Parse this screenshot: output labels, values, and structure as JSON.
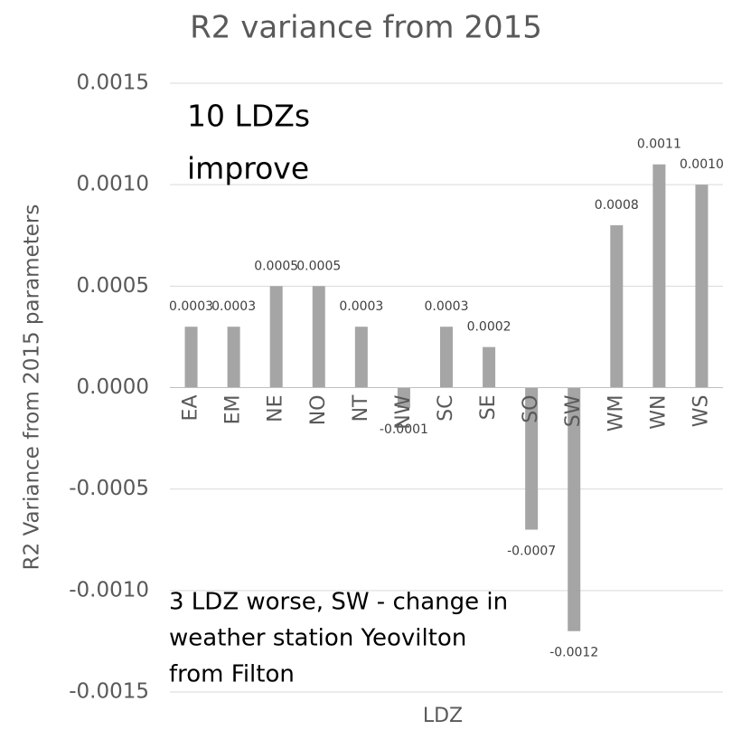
{
  "chart_data": {
    "type": "bar",
    "title": "R2 variance from 2015",
    "x_label": "LDZ",
    "y_label": "R2 Variance from 2015 parameters",
    "categories": [
      "EA",
      "EM",
      "NE",
      "NO",
      "NT",
      "NW",
      "SC",
      "SE",
      "SO",
      "SW",
      "WM",
      "WN",
      "WS"
    ],
    "values": [
      0.0003,
      0.0003,
      0.0005,
      0.0005,
      0.0003,
      -0.0001,
      0.0003,
      0.0002,
      -0.0007,
      -0.0012,
      0.0008,
      0.0011,
      0.001
    ],
    "value_labels": [
      "0.0003",
      "0.0003",
      "0.0005",
      "0.0005",
      "0.0003",
      "-0.0001",
      "0.0003",
      "0.0002",
      "-0.0007",
      "-0.0012",
      "0.0008",
      "0.0011",
      "0.0010"
    ],
    "color": "#a5a5a5",
    "ylim": [
      -0.0015,
      0.0015
    ],
    "yticks": [
      0.0015,
      {
        "value": 0.001,
        "label": "0.0010"
      },
      0.0005,
      {
        "value": 0,
        "label": "0.0000"
      },
      -0.0005,
      {
        "value": -0.001,
        "label": "-0.0010"
      },
      -0.0015
    ],
    "grid": true,
    "annotations": [
      {
        "lines": [
          "10 LDZs",
          "improve"
        ]
      },
      {
        "lines": [
          "3 LDZ worse, SW - change in",
          "weather station Yeovilton",
          "from Filton"
        ]
      }
    ]
  }
}
